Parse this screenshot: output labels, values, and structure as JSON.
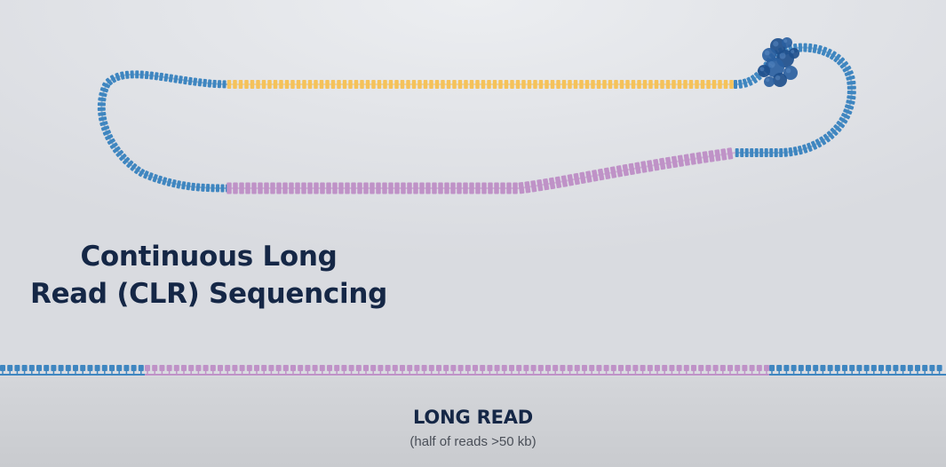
{
  "title": {
    "line1": "Continuous Long",
    "line2": "Read (CLR) Sequencing"
  },
  "read": {
    "label": "LONG READ",
    "sublabel": "(half of reads >50 kb)"
  },
  "colors": {
    "template_blue": "#3f86c0",
    "read_yellow": "#f5c25a",
    "read_purple": "#bf92c7",
    "polymerase": "#1e4f8c",
    "text_dark": "#152746"
  },
  "icons": {
    "polymerase": "polymerase-enzyme-icon"
  }
}
